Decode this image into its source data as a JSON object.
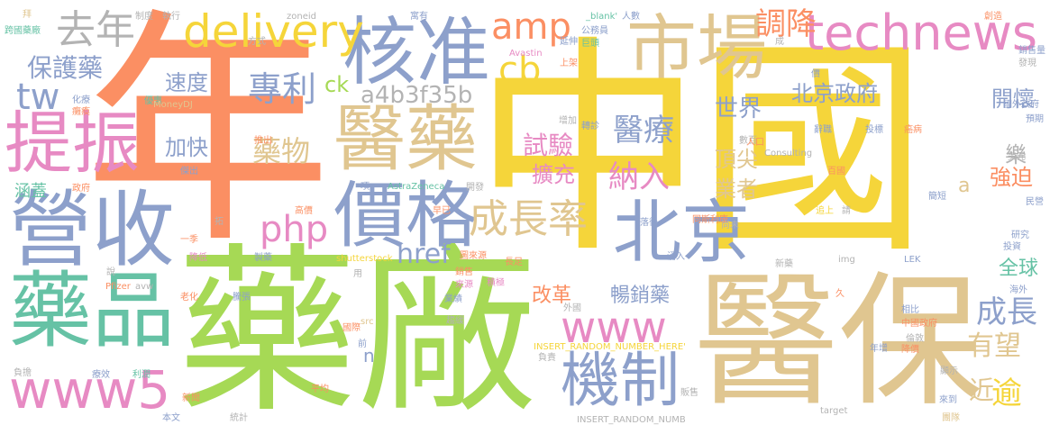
{
  "colors": {
    "yellow": "#f5d53a",
    "green": "#a6d955",
    "orange": "#fb8f63",
    "tan": "#e0c690",
    "blue": "#8da0cb",
    "pink": "#e78ac3",
    "teal": "#66c2a5",
    "gray": "#b3b3b3"
  },
  "words": {
    "zhongguo": "中國",
    "nian": "年",
    "yaochang": "藥廠",
    "yibao": "醫保",
    "hezhun": "核准",
    "shichang": "市場",
    "yiyao": "醫藥",
    "yingshou": "營收",
    "yaopin": "藥品",
    "jiage": "價格",
    "beijing": "北京",
    "tizhen": "提振",
    "technews": "technews",
    "delivery": "delivery",
    "www5": "www5",
    "www": "www",
    "jizhi": "機制",
    "chengzhanglv": "成長率",
    "qunian": "去年",
    "amp": "amp",
    "php": "php",
    "zhuanli": "專利",
    "cb": "cb",
    "tw": "tw",
    "baohuyao": "保護藥",
    "a4b3f35b": "a4b3f35b",
    "diaojiang": "調降",
    "beijingzhengfu": "北京政府",
    "yiliao": "醫療",
    "shiyan": "試驗",
    "kuochong": "擴充",
    "narun": "納入",
    "yaowu": "藥物",
    "sudu": "速度",
    "jiakuai": "加快",
    "ck": "ck",
    "href": "href",
    "chengzhang": "成長",
    "youwang": "有望",
    "shijie": "世界",
    "dingjian": "頂尖",
    "yezhe": "業者",
    "kaihuai": "開懷",
    "le": "樂",
    "qiangpo": "強迫",
    "a": "a",
    "quanqiu": "全球",
    "gaige": "改革",
    "changxiaoyao": "暢銷藥",
    "jin": "近",
    "yu": "逾",
    "n": "n",
    "hangai": "涵蓋",
    "bai": "拜",
    "zhidu": "制度",
    "zhixing": "執行",
    "zoneid": "zoneid",
    "yinshu": "寓有",
    "blank": "_blank'",
    "renshu": "人數",
    "chuangzao": "創造",
    "kuaguo": "跨國藥廠",
    "fangshi": "方式",
    "avastin": "Avastin",
    "yanshen": "延伸",
    "gongbao": "公務員",
    "juxing": "巨頭",
    "cheng": "成",
    "xiaoshou": "銷售量",
    "faxian": "發現",
    "shangjia": "上架",
    "jia": "價",
    "guowaizhengfu": "國外政府",
    "huayao": "化療",
    "yaochang2": "癱瘓",
    "youyu": "優惠",
    "moneydj": "MoneyDJ",
    "yuqi": "預期",
    "zengjia": "增加",
    "zhuanzhen": "轉診",
    "shuju": "數百",
    "consulting": "Consulting",
    "renkou": "人口",
    "tuisheng": "推出",
    "mianzi": "傑出",
    "kaifa": "開發",
    "cilv": "辭職",
    "zhixian": "投標",
    "nabing": "癌病",
    "meiyuan": "美元",
    "zhengfu": "政府",
    "xiang": "項",
    "astrazeneca": "AstraZeneca",
    "kaifa2": "開發",
    "baigu": "百國",
    "jianlu": "簡短",
    "minying": "民營",
    "gaojia": "高價",
    "zaoji": "早已",
    "luohou": "落後",
    "tongsili": "同斯利康",
    "shangwei": "尚未",
    "zhuishang": "追上",
    "qing": "請",
    "yanjiu": "研究",
    "touzi": "投資",
    "yiji": "一季",
    "jiangdi": "降低",
    "zhiyao": "製藥",
    "shutterstock": "shutterstock",
    "tuchao": "圖來源",
    "changzu": "長足",
    "yongru": "湧入",
    "img": "img",
    "lek": "LEK",
    "xinyao": "新藥",
    "haiwai": "海外",
    "pfizer": "Pfizer",
    "avw": "avw",
    "laohua": "老化",
    "duanzhang": "騰張",
    "xiaoshou2": "銷售",
    "laiyuan": "來源",
    "jiehe": "積極",
    "yeji": "業績",
    "waiguo": "外國",
    "xiangbi": "相比",
    "zhongguozhengfu": "中國政府",
    "src": "src",
    "guoji": "國際",
    "quzhi": "趨緩",
    "lundun": "倫敦",
    "insert1": "INSERT_RANDOM_NUMBER_HERE'",
    "fudan": "負擔",
    "liaoxiao": "療效",
    "liyuan": "利潤",
    "pingjun": "平均",
    "qian": "前",
    "fuze": "負責",
    "niancheng": "年增",
    "jiangjia": "降價",
    "xianshi": "顯示",
    "xinwen": "新聞",
    "fanshou": "販售",
    "laidao": "來到",
    "benwen": "本文",
    "tongji": "統計",
    "insert2": "INSERT_RANDOM_NUMB",
    "target": "target",
    "tuantui": "團隊",
    "tuo": "拓",
    "jiu": "久",
    "shuo": "說",
    "yong": "用"
  }
}
